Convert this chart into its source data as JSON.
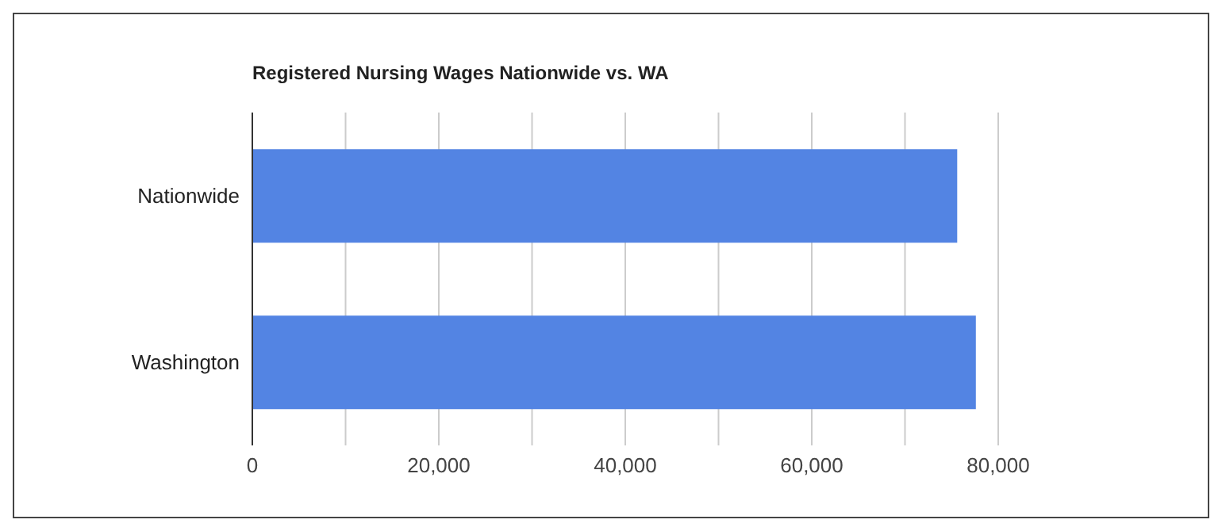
{
  "chart_data": {
    "type": "bar",
    "orientation": "horizontal",
    "title": "Registered Nursing Wages Nationwide vs. WA",
    "categories": [
      "Nationwide",
      "Washington"
    ],
    "series": [
      {
        "color": "#5384e3",
        "values": [
          75600,
          77600
        ]
      }
    ],
    "xlim": [
      0,
      80000
    ],
    "xticks": [
      0,
      {
        "value": 10000,
        "label": null
      },
      {
        "value": 20000,
        "label": "20,000"
      },
      {
        "value": 30000,
        "label": null
      },
      {
        "value": 40000,
        "label": "40,000"
      },
      {
        "value": 50000,
        "label": null
      },
      {
        "value": 60000,
        "label": "60,000"
      },
      {
        "value": 70000,
        "label": null
      },
      {
        "value": 80000,
        "label": "80,000"
      }
    ],
    "grid": "x",
    "legend": false
  }
}
